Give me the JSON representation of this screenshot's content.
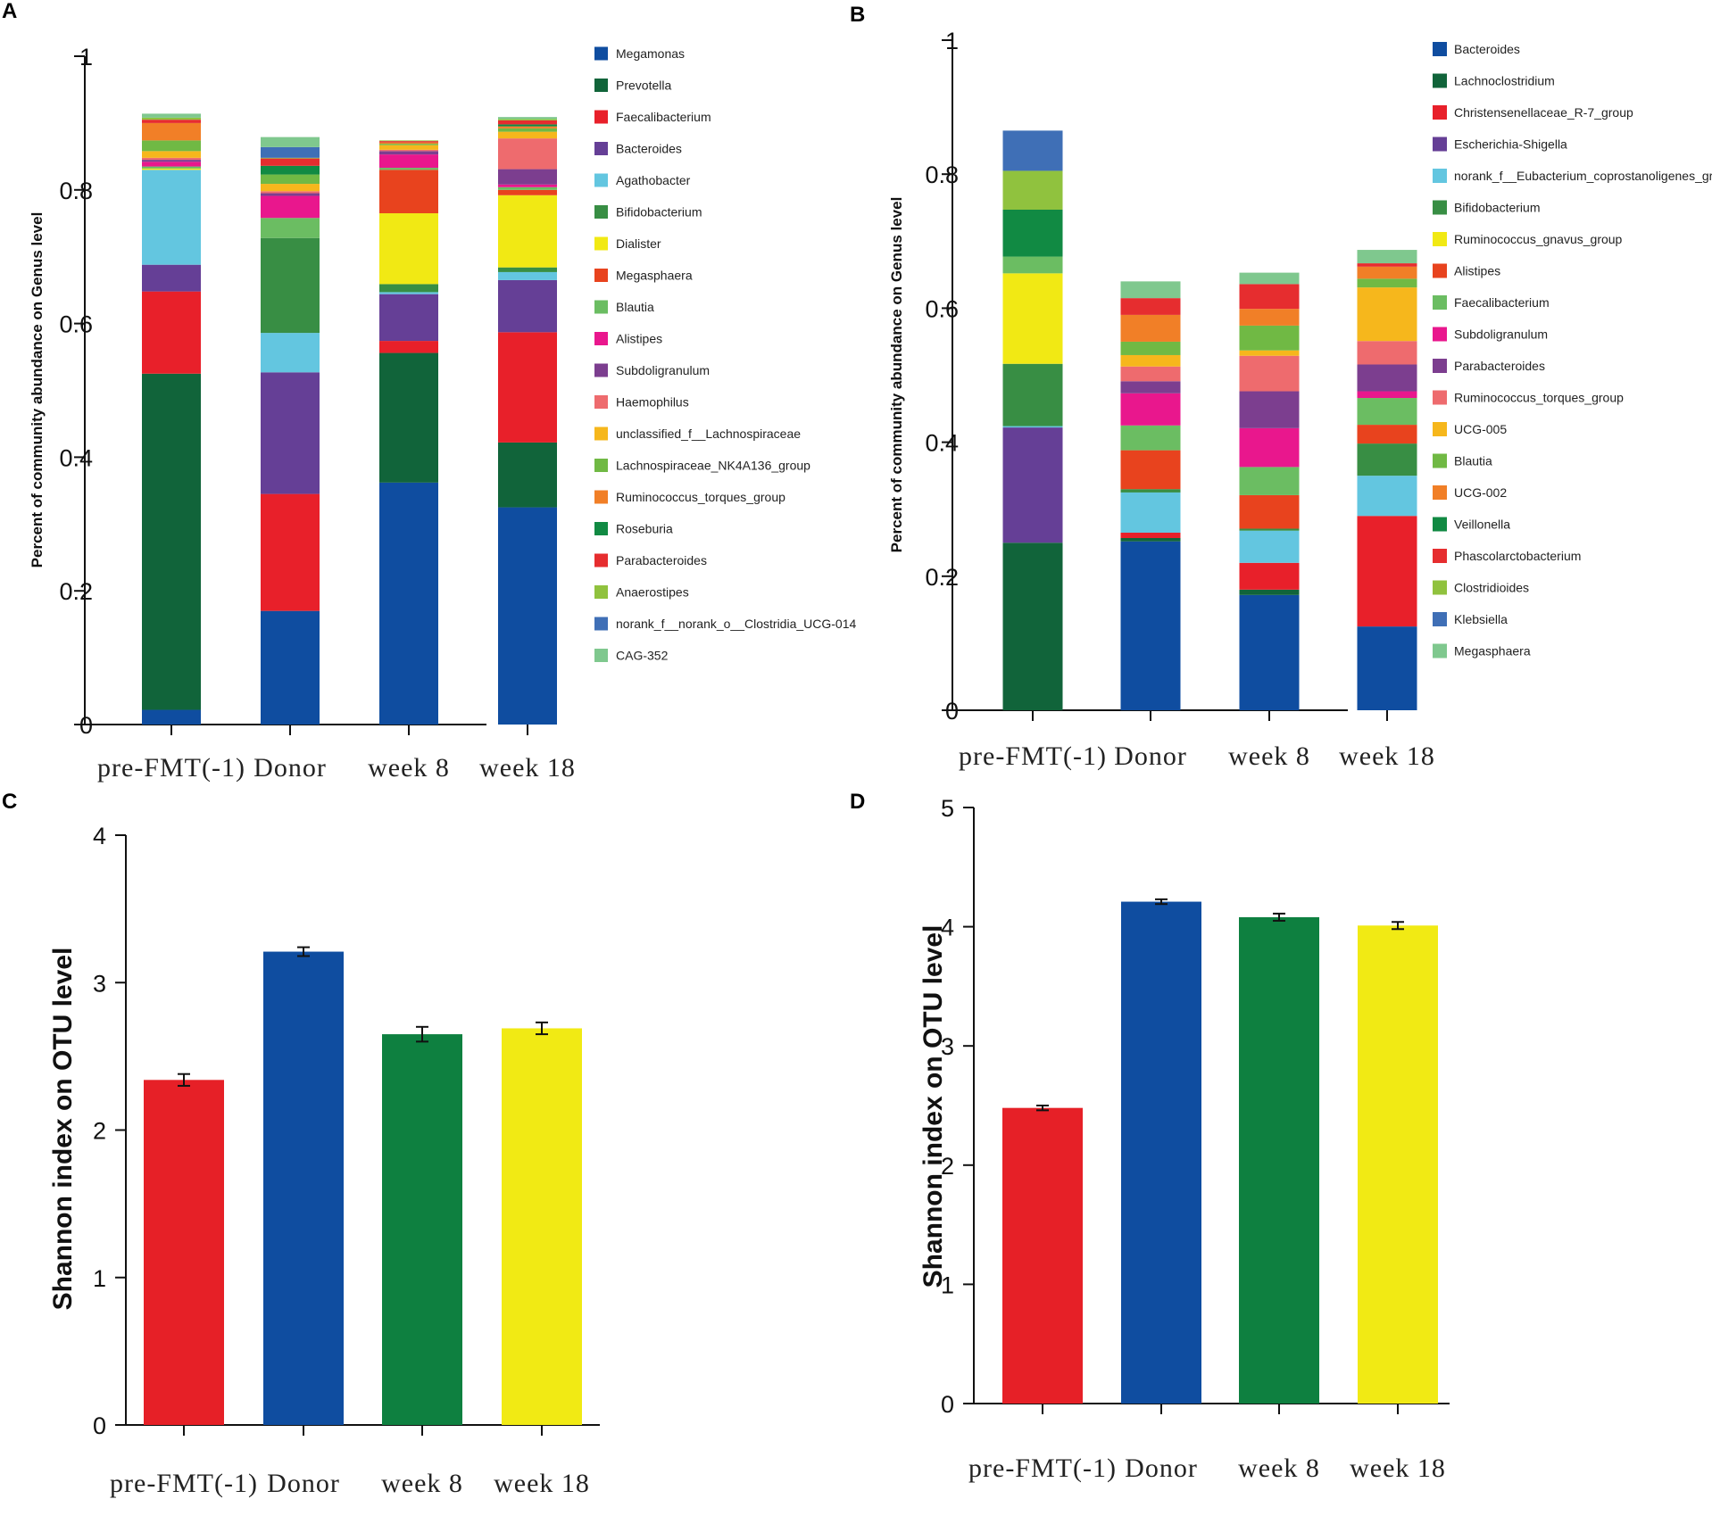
{
  "chart_data": [
    {
      "panel": "A",
      "type": "bar",
      "stacked": true,
      "ylabel": "Percent of community abundance on Genus level",
      "ylim": [
        0,
        1
      ],
      "yticks": [
        "0",
        "0.2",
        "0.4",
        "0.6",
        "0.8",
        "1"
      ],
      "categories": [
        "pre-FMT(-1)",
        "Donor",
        "week 8",
        "week 18"
      ],
      "legend_position": "right",
      "series": [
        {
          "name": "Megamonas",
          "color": "#0f4da0",
          "values": [
            0.022,
            0.17,
            0.362,
            0.325
          ]
        },
        {
          "name": "Prevotella",
          "color": "#11643a",
          "values": [
            0.503,
            0.0,
            0.194,
            0.097
          ]
        },
        {
          "name": "Faecalibacterium",
          "color": "#e8202a",
          "values": [
            0.123,
            0.175,
            0.018,
            0.165
          ]
        },
        {
          "name": "Bacteroides",
          "color": "#653f96",
          "values": [
            0.04,
            0.182,
            0.07,
            0.078
          ]
        },
        {
          "name": "Agathobacter",
          "color": "#63c6e0",
          "values": [
            0.142,
            0.059,
            0.003,
            0.012
          ]
        },
        {
          "name": "Bifidobacterium",
          "color": "#388e44",
          "values": [
            0.0,
            0.142,
            0.012,
            0.007
          ]
        },
        {
          "name": "Dialister",
          "color": "#f1e914",
          "values": [
            0.002,
            0.0,
            0.106,
            0.108
          ]
        },
        {
          "name": "Megasphaera",
          "color": "#e8431e",
          "values": [
            0.0,
            0.0,
            0.065,
            0.008
          ]
        },
        {
          "name": "Blautia",
          "color": "#6bbd62",
          "values": [
            0.003,
            0.03,
            0.003,
            0.004
          ]
        },
        {
          "name": "Alistipes",
          "color": "#e9178d",
          "values": [
            0.007,
            0.033,
            0.02,
            0.004
          ]
        },
        {
          "name": "Subdoligranulum",
          "color": "#7c3e8f",
          "values": [
            0.003,
            0.004,
            0.005,
            0.023
          ]
        },
        {
          "name": "Haemophilus",
          "color": "#ee6b6e",
          "values": [
            0.003,
            0.003,
            0.002,
            0.046
          ]
        },
        {
          "name": "unclassified_f__Lachnospiraceae",
          "color": "#f6b71c",
          "values": [
            0.01,
            0.011,
            0.007,
            0.01
          ]
        },
        {
          "name": "Lachnospiraceae_NK4A136_group",
          "color": "#70b944",
          "values": [
            0.016,
            0.014,
            0.002,
            0.005
          ]
        },
        {
          "name": "Ruminococcus_torques_group",
          "color": "#f17f27",
          "values": [
            0.026,
            0.0,
            0.002,
            0.003
          ]
        },
        {
          "name": "Roseburia",
          "color": "#118a43",
          "values": [
            0.0,
            0.013,
            0.0,
            0.003
          ]
        },
        {
          "name": "Parabacteroides",
          "color": "#e62d2f",
          "values": [
            0.005,
            0.011,
            0.002,
            0.006
          ]
        },
        {
          "name": "Anaerostipes",
          "color": "#90c23e",
          "values": [
            0.003,
            0.001,
            0.001,
            0.002
          ]
        },
        {
          "name": "norank_f__norank_o__Clostridia_UCG-014",
          "color": "#3f6fb6",
          "values": [
            0.0,
            0.016,
            0.0,
            0.0
          ]
        },
        {
          "name": "CAG-352",
          "color": "#7fc88e",
          "values": [
            0.006,
            0.015,
            0.0,
            0.003
          ]
        }
      ]
    },
    {
      "panel": "B",
      "type": "bar",
      "stacked": true,
      "ylabel": "Percent of community abundance on Genus level",
      "ylim": [
        0,
        1
      ],
      "yticks": [
        "0",
        "0.2",
        "0.4",
        "0.6",
        "0.8",
        "1"
      ],
      "categories": [
        "pre-FMT(-1)",
        "Donor",
        "week 8",
        "week 18"
      ],
      "legend_position": "right",
      "series": [
        {
          "name": "Bacteroides",
          "color": "#0f4da0",
          "values": [
            0.0,
            0.252,
            0.172,
            0.125
          ]
        },
        {
          "name": "Lachnoclostridium",
          "color": "#11643a",
          "values": [
            0.25,
            0.005,
            0.008,
            0.0
          ]
        },
        {
          "name": "Christensenellaceae_R-7_group",
          "color": "#e8202a",
          "values": [
            0.0,
            0.008,
            0.04,
            0.165
          ]
        },
        {
          "name": "Escherichia-Shigella",
          "color": "#653f96",
          "values": [
            0.172,
            0.0,
            0.0,
            0.0
          ]
        },
        {
          "name": "norank_f__Eubacterium_coprostanoligenes_group",
          "color": "#63c6e0",
          "values": [
            0.002,
            0.06,
            0.048,
            0.06
          ]
        },
        {
          "name": "Bifidobacterium",
          "color": "#388e44",
          "values": [
            0.093,
            0.005,
            0.003,
            0.048
          ]
        },
        {
          "name": "Ruminococcus_gnavus_group",
          "color": "#f1e914",
          "values": [
            0.135,
            0.0,
            0.0,
            0.0
          ]
        },
        {
          "name": "Alistipes",
          "color": "#e8431e",
          "values": [
            0.0,
            0.058,
            0.05,
            0.028
          ]
        },
        {
          "name": "Faecalibacterium",
          "color": "#6bbd62",
          "values": [
            0.025,
            0.037,
            0.042,
            0.04
          ]
        },
        {
          "name": "Subdoligranulum",
          "color": "#e9178d",
          "values": [
            0.0,
            0.048,
            0.058,
            0.01
          ]
        },
        {
          "name": "Parabacteroides",
          "color": "#7c3e8f",
          "values": [
            0.0,
            0.018,
            0.055,
            0.04
          ]
        },
        {
          "name": "Ruminococcus_torques_group",
          "color": "#ee6b6e",
          "values": [
            0.0,
            0.022,
            0.053,
            0.035
          ]
        },
        {
          "name": "UCG-005",
          "color": "#f6b71c",
          "values": [
            0.0,
            0.017,
            0.008,
            0.08
          ]
        },
        {
          "name": "Blautia",
          "color": "#70b944",
          "values": [
            0.0,
            0.02,
            0.037,
            0.013
          ]
        },
        {
          "name": "UCG-002",
          "color": "#f17f27",
          "values": [
            0.0,
            0.04,
            0.025,
            0.018
          ]
        },
        {
          "name": "Veillonella",
          "color": "#118a43",
          "values": [
            0.07,
            0.0,
            0.0,
            0.0
          ]
        },
        {
          "name": "Phascolarctobacterium",
          "color": "#e62d2f",
          "values": [
            0.0,
            0.025,
            0.037,
            0.005
          ]
        },
        {
          "name": "Clostridioides",
          "color": "#90c23e",
          "values": [
            0.058,
            0.0,
            0.0,
            0.0
          ]
        },
        {
          "name": "Klebsiella",
          "color": "#3f6fb6",
          "values": [
            0.06,
            0.0,
            0.0,
            0.0
          ]
        },
        {
          "name": "Megasphaera",
          "color": "#7fc88e",
          "values": [
            0.0,
            0.025,
            0.017,
            0.02
          ]
        }
      ]
    },
    {
      "panel": "C",
      "type": "bar",
      "ylabel": "Shannon index on OTU level",
      "ylim": [
        0,
        4
      ],
      "yticks": [
        "0",
        "1",
        "2",
        "3",
        "4"
      ],
      "categories": [
        "pre-FMT(-1)",
        "Donor",
        "week 8",
        "week 18"
      ],
      "values": [
        2.34,
        3.21,
        2.65,
        2.69
      ],
      "errors": [
        0.04,
        0.03,
        0.05,
        0.04
      ],
      "colors": [
        "#e62027",
        "#0f4da0",
        "#0e8040",
        "#f1ea14"
      ]
    },
    {
      "panel": "D",
      "type": "bar",
      "ylabel": "Shannon index on OTU level",
      "ylim": [
        0,
        5
      ],
      "yticks": [
        "0",
        "1",
        "2",
        "3",
        "4",
        "5"
      ],
      "categories": [
        "pre-FMT(-1)",
        "Donor",
        "week 8",
        "week 18"
      ],
      "values": [
        2.48,
        4.21,
        4.08,
        4.01
      ],
      "errors": [
        0.02,
        0.02,
        0.03,
        0.03
      ],
      "colors": [
        "#e62027",
        "#0f4da0",
        "#0e8040",
        "#f1ea14"
      ]
    }
  ]
}
